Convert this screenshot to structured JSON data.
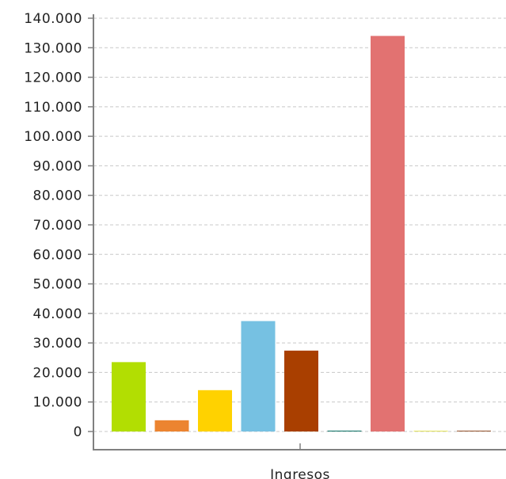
{
  "chart_data": {
    "type": "bar",
    "categories": [
      "Ingresos"
    ],
    "series": [
      {
        "values": [
          23500
        ],
        "color": "#b2de02"
      },
      {
        "values": [
          3800
        ],
        "color": "#ec8430"
      },
      {
        "values": [
          14000
        ],
        "color": "#ffd200"
      },
      {
        "values": [
          37400
        ],
        "color": "#76c1e2"
      },
      {
        "values": [
          27400
        ],
        "color": "#a93f00"
      },
      {
        "values": [
          300
        ],
        "color": "#1a7a6e"
      },
      {
        "values": [
          134000
        ],
        "color": "#e27271"
      },
      {
        "values": [
          200
        ],
        "color": "#e2e25a"
      },
      {
        "values": [
          300
        ],
        "color": "#9b5d3a"
      }
    ],
    "ylim": [
      0,
      140000
    ],
    "yticks": [
      0,
      10000,
      20000,
      30000,
      40000,
      50000,
      60000,
      70000,
      80000,
      90000,
      100000,
      110000,
      120000,
      130000,
      140000
    ],
    "ytick_labels": [
      "0",
      "10.000",
      "20.000",
      "30.000",
      "40.000",
      "50.000",
      "60.000",
      "70.000",
      "80.000",
      "90.000",
      "100.000",
      "110.000",
      "120.000",
      "130.000",
      "140.000"
    ],
    "grid": true,
    "legend": "none"
  }
}
